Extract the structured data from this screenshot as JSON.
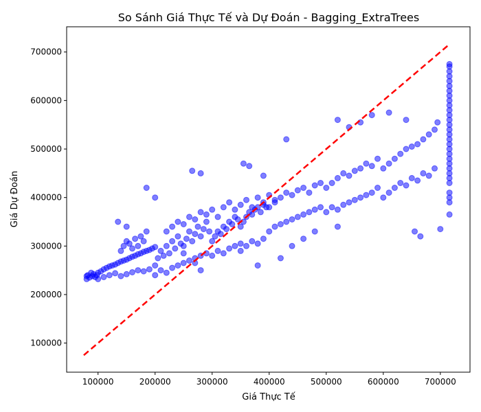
{
  "chart_data": {
    "type": "scatter",
    "title": "So Sánh Giá Thực Tế và Dự Đoán - Bagging_ExtraTrees",
    "xlabel": "Giá Thực Tế",
    "ylabel": "Giá Dự Đoán",
    "xlim": [
      45000,
      752000
    ],
    "ylim": [
      40000,
      752000
    ],
    "xticks": [
      100000,
      200000,
      300000,
      400000,
      500000,
      600000,
      700000
    ],
    "yticks": [
      100000,
      200000,
      300000,
      400000,
      500000,
      600000,
      700000
    ],
    "grid": false,
    "series": [
      {
        "color": "#0000ff",
        "opacity": 0.5,
        "marker": "circle",
        "x": [
          80000,
          80000,
          82000,
          85000,
          88000,
          90000,
          92000,
          95000,
          98000,
          100000,
          105000,
          110000,
          115000,
          120000,
          125000,
          130000,
          135000,
          140000,
          145000,
          150000,
          155000,
          160000,
          165000,
          170000,
          175000,
          180000,
          185000,
          190000,
          195000,
          200000,
          100000,
          110000,
          120000,
          130000,
          140000,
          150000,
          160000,
          170000,
          180000,
          190000,
          140000,
          145000,
          150000,
          155000,
          160000,
          165000,
          170000,
          175000,
          180000,
          185000,
          200000,
          205000,
          210000,
          215000,
          220000,
          225000,
          230000,
          235000,
          240000,
          245000,
          250000,
          255000,
          260000,
          265000,
          270000,
          275000,
          280000,
          285000,
          290000,
          295000,
          200000,
          210000,
          220000,
          230000,
          240000,
          250000,
          260000,
          270000,
          280000,
          290000,
          220000,
          230000,
          240000,
          250000,
          260000,
          270000,
          280000,
          290000,
          300000,
          310000,
          300000,
          305000,
          310000,
          315000,
          320000,
          325000,
          330000,
          335000,
          340000,
          345000,
          350000,
          355000,
          360000,
          365000,
          370000,
          375000,
          380000,
          385000,
          390000,
          395000,
          300000,
          310000,
          320000,
          330000,
          340000,
          350000,
          360000,
          370000,
          380000,
          390000,
          320000,
          330000,
          340000,
          350000,
          360000,
          370000,
          380000,
          390000,
          400000,
          410000,
          400000,
          410000,
          420000,
          430000,
          440000,
          450000,
          460000,
          470000,
          480000,
          490000,
          400000,
          410000,
          420000,
          430000,
          440000,
          450000,
          460000,
          470000,
          480000,
          490000,
          500000,
          510000,
          520000,
          530000,
          540000,
          550000,
          560000,
          570000,
          580000,
          590000,
          500000,
          510000,
          520000,
          530000,
          540000,
          550000,
          560000,
          570000,
          580000,
          590000,
          600000,
          610000,
          620000,
          630000,
          640000,
          650000,
          660000,
          670000,
          680000,
          690000,
          600000,
          610000,
          620000,
          630000,
          640000,
          650000,
          660000,
          670000,
          680000,
          690000,
          135000,
          150000,
          185000,
          200000,
          265000,
          280000,
          355000,
          365000,
          390000,
          430000,
          250000,
          270000,
          280000,
          350000,
          380000,
          420000,
          440000,
          460000,
          480000,
          520000,
          520000,
          540000,
          560000,
          580000,
          610000,
          640000,
          655000,
          665000,
          695000,
          700000,
          716000,
          716000,
          716000,
          716000,
          716000,
          716000,
          716000,
          716000,
          716000,
          716000,
          716000,
          716000,
          716000,
          716000,
          716000,
          716000,
          716000,
          716000,
          716000,
          716000,
          716000,
          716000,
          716000,
          716000,
          716000,
          716000,
          716000,
          716000,
          716000,
          716000
        ],
        "y": [
          238000,
          232000,
          240000,
          235000,
          245000,
          238000,
          242000,
          236000,
          240000,
          245000,
          248000,
          252000,
          255000,
          258000,
          260000,
          262000,
          265000,
          268000,
          270000,
          272000,
          275000,
          278000,
          280000,
          283000,
          285000,
          288000,
          290000,
          292000,
          295000,
          298000,
          232000,
          236000,
          240000,
          244000,
          238000,
          242000,
          246000,
          250000,
          248000,
          252000,
          290000,
          300000,
          310000,
          305000,
          295000,
          315000,
          300000,
          320000,
          310000,
          330000,
          260000,
          275000,
          290000,
          280000,
          300000,
          285000,
          310000,
          295000,
          320000,
          305000,
          300000,
          315000,
          330000,
          310000,
          325000,
          340000,
          320000,
          335000,
          350000,
          330000,
          240000,
          250000,
          245000,
          255000,
          260000,
          265000,
          270000,
          275000,
          280000,
          285000,
          330000,
          340000,
          350000,
          345000,
          360000,
          355000,
          370000,
          365000,
          375000,
          360000,
          310000,
          320000,
          330000,
          325000,
          340000,
          335000,
          350000,
          345000,
          360000,
          355000,
          340000,
          350000,
          360000,
          370000,
          365000,
          375000,
          380000,
          370000,
          385000,
          380000,
          280000,
          290000,
          285000,
          295000,
          300000,
          305000,
          300000,
          310000,
          305000,
          315000,
          380000,
          390000,
          375000,
          385000,
          395000,
          380000,
          400000,
          390000,
          405000,
          395000,
          380000,
          390000,
          400000,
          410000,
          405000,
          415000,
          420000,
          410000,
          425000,
          430000,
          330000,
          340000,
          345000,
          350000,
          355000,
          360000,
          365000,
          370000,
          375000,
          380000,
          420000,
          430000,
          440000,
          450000,
          445000,
          455000,
          460000,
          470000,
          465000,
          480000,
          370000,
          380000,
          375000,
          385000,
          390000,
          395000,
          400000,
          405000,
          410000,
          420000,
          460000,
          470000,
          480000,
          490000,
          500000,
          505000,
          510000,
          520000,
          530000,
          540000,
          400000,
          410000,
          420000,
          430000,
          425000,
          440000,
          435000,
          450000,
          445000,
          460000,
          350000,
          340000,
          420000,
          400000,
          455000,
          450000,
          470000,
          465000,
          445000,
          520000,
          285000,
          265000,
          250000,
          290000,
          260000,
          275000,
          300000,
          315000,
          330000,
          340000,
          560000,
          545000,
          555000,
          570000,
          575000,
          560000,
          330000,
          320000,
          555000,
          335000,
          450000,
          470000,
          490000,
          510000,
          530000,
          550000,
          570000,
          590000,
          610000,
          630000,
          650000,
          670000,
          675000,
          460000,
          480000,
          500000,
          520000,
          540000,
          560000,
          580000,
          600000,
          620000,
          640000,
          660000,
          390000,
          410000,
          430000,
          365000,
          400000,
          440000
        ]
      }
    ],
    "reference_line": {
      "x": [
        75000,
        716000
      ],
      "y": [
        75000,
        716000
      ],
      "color": "#ff0000",
      "style": "dashed"
    }
  }
}
